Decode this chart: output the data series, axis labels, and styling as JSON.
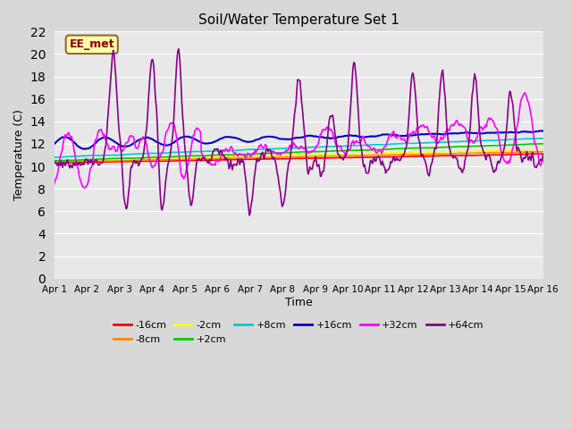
{
  "title": "Soil/Water Temperature Set 1",
  "xlabel": "Time",
  "ylabel": "Temperature (C)",
  "ylim": [
    0,
    22
  ],
  "yticks": [
    0,
    2,
    4,
    6,
    8,
    10,
    12,
    14,
    16,
    18,
    20,
    22
  ],
  "xlim": [
    0,
    15
  ],
  "xtick_labels": [
    "Apr 1",
    "Apr 2",
    "Apr 3",
    "Apr 4",
    "Apr 5",
    "Apr 6",
    "Apr 7",
    "Apr 8",
    "Apr 9",
    "Apr 10",
    "Apr 11",
    "Apr 12",
    "Apr 13",
    "Apr 14",
    "Apr 15",
    "Apr 16"
  ],
  "annotation": "EE_met",
  "series_colors": {
    "-16cm": "#ff0000",
    "-8cm": "#ff8800",
    "-2cm": "#ffff00",
    "+2cm": "#00cc00",
    "+8cm": "#00cccc",
    "+16cm": "#0000cc",
    "+32cm": "#ff00ff",
    "+64cm": "#880088"
  },
  "fig_bg": "#d8d8d8",
  "plot_bg": "#e8e8e8",
  "grid_color": "#ffffff",
  "legend_items": [
    "-16cm",
    "-8cm",
    "-2cm",
    "+2cm",
    "+8cm",
    "+16cm",
    "+32cm",
    "+64cm"
  ]
}
